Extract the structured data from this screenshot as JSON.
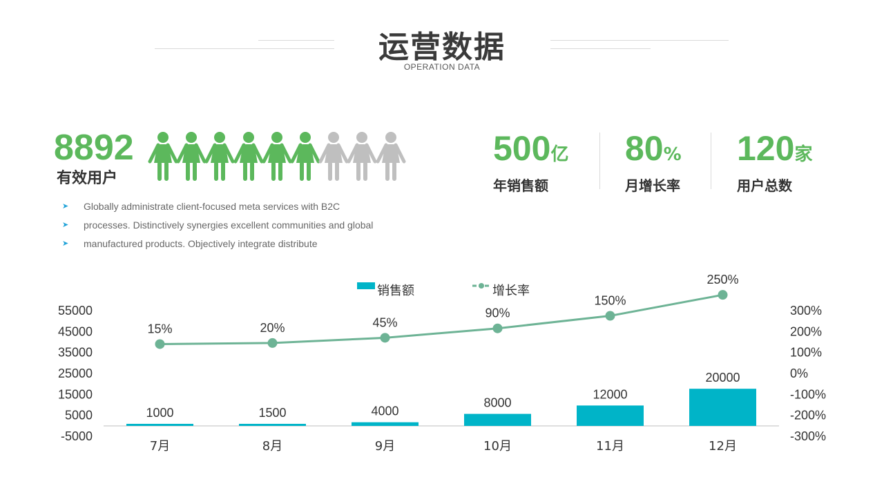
{
  "header": {
    "title": "运营数据",
    "subtitle": "OPERATION DATA"
  },
  "users": {
    "count": "8892",
    "label": "有效用户",
    "people_total": 9,
    "people_active": 6,
    "active_color": "#5cb85c",
    "inactive_color": "#bfbfbf"
  },
  "stats": [
    {
      "value": "500",
      "unit": "亿",
      "label": "年销售额"
    },
    {
      "value": "80",
      "unit": "%",
      "label": "月增长率"
    },
    {
      "value": "120",
      "unit": "家",
      "label": "用户总数"
    }
  ],
  "bullets": [
    "Globally administrate client-focused meta services with B2C",
    "processes. Distinctively synergies excellent communities and global",
    "manufactured products. Objectively integrate distribute"
  ],
  "colors": {
    "accent_green": "#5cb85c",
    "bar": "#00b4c8",
    "line": "#6db395"
  },
  "chart_data": {
    "type": "bar",
    "categories": [
      "7月",
      "8月",
      "9月",
      "10月",
      "11月",
      "12月"
    ],
    "series": [
      {
        "name": "销售额",
        "type": "bar",
        "axis": "left",
        "values": [
          1000,
          1500,
          4000,
          8000,
          12000,
          20000
        ],
        "data_labels": [
          "1000",
          "1500",
          "4000",
          "8000",
          "12000",
          "20000"
        ]
      },
      {
        "name": "增长率",
        "type": "line",
        "axis": "right",
        "values": [
          15,
          20,
          45,
          90,
          150,
          250
        ],
        "data_labels": [
          "15%",
          "20%",
          "45%",
          "90%",
          "150%",
          "250%"
        ]
      }
    ],
    "left_axis": {
      "ylim": [
        -5000,
        55000
      ],
      "ticks": [
        "55000",
        "45000",
        "35000",
        "25000",
        "15000",
        "5000",
        "-5000"
      ]
    },
    "right_axis": {
      "ylim": [
        -300,
        300
      ],
      "ticks": [
        "300%",
        "200%",
        "100%",
        "0%",
        "-100%",
        "-200%",
        "-300%"
      ]
    },
    "legend": {
      "position": "top-center"
    },
    "grid": false
  }
}
